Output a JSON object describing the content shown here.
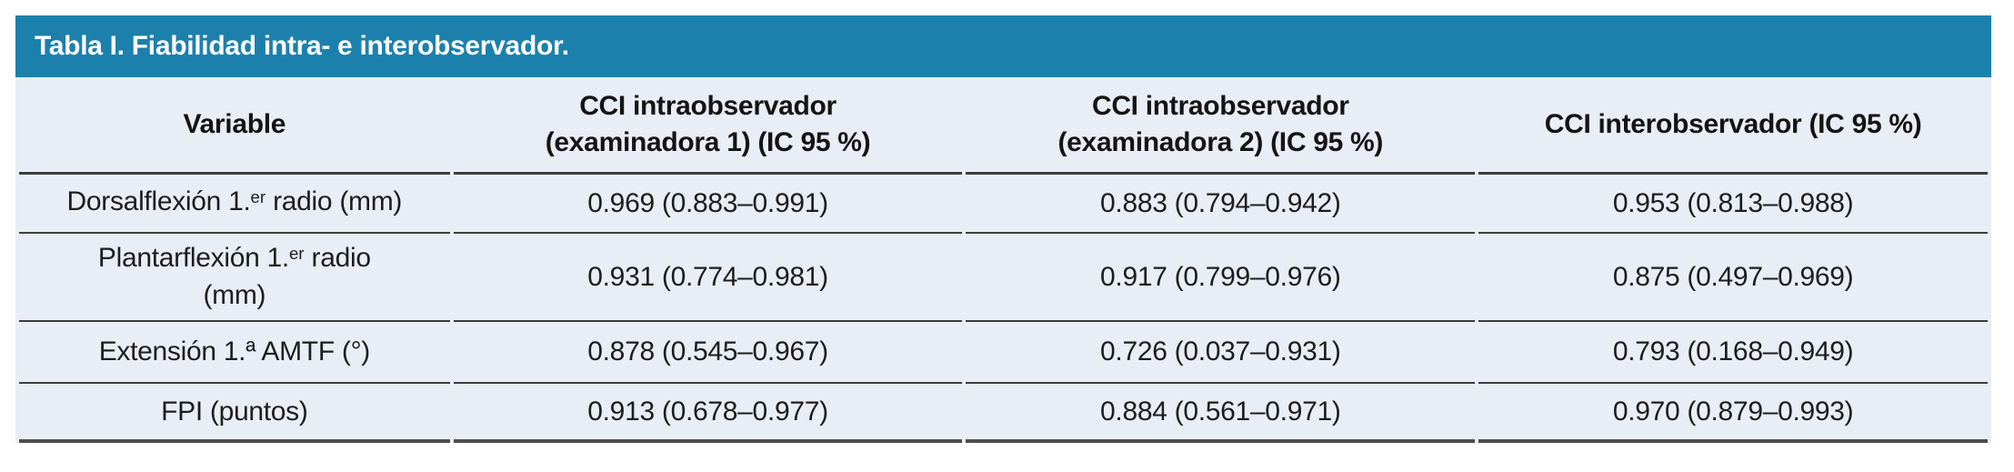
{
  "colors": {
    "accent_teal": "#1c80ad",
    "table_body_bg": "#e9edf6",
    "rule_dark": "#3d3d3d",
    "bottom_rule": "#4d4d4d",
    "title_text": "#ffffff",
    "cell_text": "#1d1d1d"
  },
  "table": {
    "title": "Tabla I. Fiabilidad intra- e interobservador.",
    "columns": [
      {
        "id": "variable",
        "lines": [
          "Variable"
        ]
      },
      {
        "id": "cci-intra-1",
        "lines": [
          "CCI intraobservador",
          "(examinadora 1) (IC 95 %)"
        ]
      },
      {
        "id": "cci-intra-2",
        "lines": [
          "CCI intraobservador",
          "(examinadora 2) (IC 95 %)"
        ]
      },
      {
        "id": "cci-inter",
        "lines": [
          "CCI interobservador (IC 95 %)"
        ]
      }
    ],
    "rows": [
      {
        "id": "dorsalflexion",
        "variable": [
          {
            "t": "Dorsalflexión 1."
          },
          {
            "t": "er",
            "sup": true
          },
          {
            "t": " radio (mm)"
          }
        ],
        "values": [
          "0.969 (0.883–0.991)",
          "0.883 (0.794–0.942)",
          "0.953 (0.813–0.988)"
        ]
      },
      {
        "id": "plantarflexion",
        "variable": [
          {
            "t": "Plantarflexión 1."
          },
          {
            "t": "er",
            "sup": true
          },
          {
            "t": " radio"
          },
          {
            "br": true
          },
          {
            "t": "(mm)"
          }
        ],
        "values": [
          "0.931 (0.774–0.981)",
          "0.917 (0.799–0.976)",
          "0.875 (0.497–0.969)"
        ]
      },
      {
        "id": "extension-amtf",
        "variable": [
          {
            "t": "Extensión 1.ª AMTF (°)"
          }
        ],
        "values": [
          "0.878 (0.545–0.967)",
          "0.726 (0.037–0.931)",
          "0.793 (0.168–0.949)"
        ]
      },
      {
        "id": "fpi",
        "variable": [
          {
            "t": "FPI (puntos)"
          }
        ],
        "values": [
          "0.913 (0.678–0.977)",
          "0.884 (0.561–0.971)",
          "0.970 (0.879–0.993)"
        ]
      }
    ]
  }
}
